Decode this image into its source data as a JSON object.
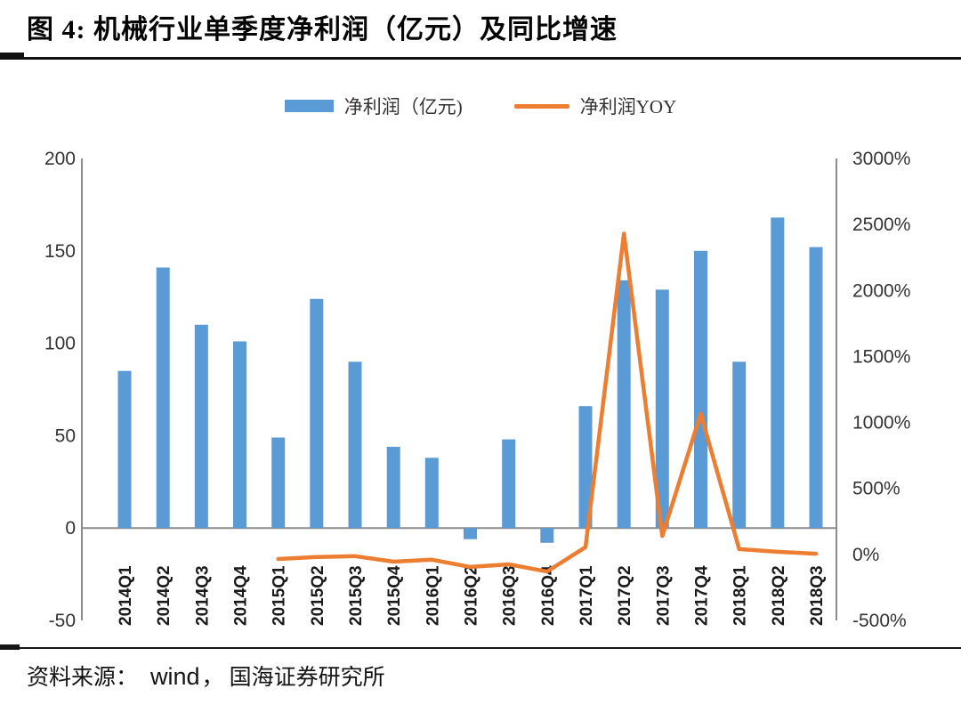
{
  "figure": {
    "title": "图 4:  机械行业单季度净利润（亿元）及同比增速",
    "source": {
      "prefix": "资料来源：",
      "vendor": "wind",
      "separator": "，",
      "institution": "国海证券研究所"
    }
  },
  "legend": {
    "bar_label": "净利润（亿元)",
    "line_label": "净利润YOY"
  },
  "colors": {
    "bar": "#5B9BD5",
    "line": "#ED7D31",
    "axis_line": "#8C8C8C",
    "tick_text": "#333333",
    "category_text": "#1a1a1a"
  },
  "chart_data": {
    "type": "combo-bar-line",
    "title": "机械行业单季度净利润（亿元）及同比增速",
    "categories": [
      "2014Q1",
      "2014Q2",
      "2014Q3",
      "2014Q4",
      "2015Q1",
      "2015Q2",
      "2015Q3",
      "2015Q4",
      "2016Q1",
      "2016Q2",
      "2016Q3",
      "2016Q4",
      "2017Q1",
      "2017Q2",
      "2017Q3",
      "2017Q4",
      "2018Q1",
      "2018Q2",
      "2018Q3"
    ],
    "series": [
      {
        "name": "净利润（亿元)",
        "type": "bar",
        "axis": "left",
        "color": "#5B9BD5",
        "values": [
          85,
          141,
          110,
          101,
          49,
          124,
          90,
          44,
          38,
          -6,
          48,
          -8,
          66,
          134,
          129,
          150,
          90,
          168,
          152
        ]
      },
      {
        "name": "净利润YOY",
        "type": "line",
        "axis": "right",
        "color": "#ED7D31",
        "values": [
          null,
          null,
          null,
          null,
          -35,
          -20,
          -13,
          -55,
          -40,
          -95,
          -75,
          -130,
          55,
          2430,
          140,
          1065,
          40,
          20,
          5
        ]
      }
    ],
    "left_axis": {
      "min": -50,
      "max": 200,
      "step": 50,
      "unit": ""
    },
    "right_axis": {
      "min": -500,
      "max": 3000,
      "step": 500,
      "unit": "%"
    },
    "grid": false,
    "legend_position": "top"
  }
}
